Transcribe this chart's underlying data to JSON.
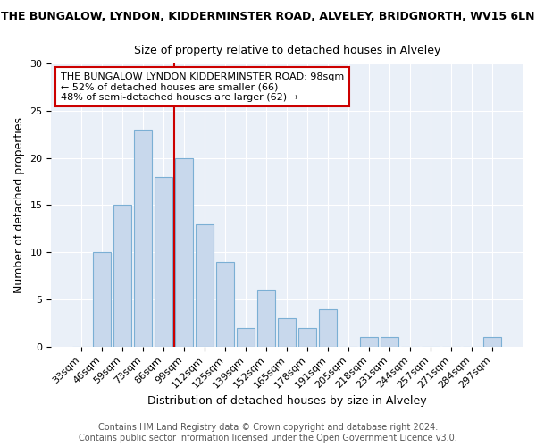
{
  "title_main": "THE BUNGALOW, LYNDON, KIDDERMINSTER ROAD, ALVELEY, BRIDGNORTH, WV15 6LN",
  "title_sub": "Size of property relative to detached houses in Alveley",
  "xlabel": "Distribution of detached houses by size in Alveley",
  "ylabel": "Number of detached properties",
  "categories": [
    "33sqm",
    "46sqm",
    "59sqm",
    "73sqm",
    "86sqm",
    "99sqm",
    "112sqm",
    "125sqm",
    "139sqm",
    "152sqm",
    "165sqm",
    "178sqm",
    "191sqm",
    "205sqm",
    "218sqm",
    "231sqm",
    "244sqm",
    "257sqm",
    "271sqm",
    "284sqm",
    "297sqm"
  ],
  "values": [
    0,
    10,
    15,
    23,
    18,
    20,
    13,
    9,
    2,
    6,
    3,
    2,
    4,
    0,
    1,
    1,
    0,
    0,
    0,
    0,
    1
  ],
  "bar_color": "#c8d8ec",
  "bar_edge_color": "#7bafd4",
  "vline_x": 4.5,
  "vline_color": "#cc0000",
  "annotation_line1": "THE BUNGALOW LYNDON KIDDERMINSTER ROAD: 98sqm",
  "annotation_line2": "← 52% of detached houses are smaller (66)",
  "annotation_line3": "48% of semi-detached houses are larger (62) →",
  "annotation_box_facecolor": "#ffffff",
  "annotation_box_edgecolor": "#cc0000",
  "ylim": [
    0,
    30
  ],
  "yticks": [
    0,
    5,
    10,
    15,
    20,
    25,
    30
  ],
  "footer_line1": "Contains HM Land Registry data © Crown copyright and database right 2024.",
  "footer_line2": "Contains public sector information licensed under the Open Government Licence v3.0.",
  "fig_bg_color": "#ffffff",
  "plot_bg_color": "#eaf0f8",
  "grid_color": "#ffffff",
  "title_main_fontsize": 9,
  "title_sub_fontsize": 9,
  "axis_label_fontsize": 9,
  "tick_fontsize": 8,
  "annotation_fontsize": 8,
  "footer_fontsize": 7
}
